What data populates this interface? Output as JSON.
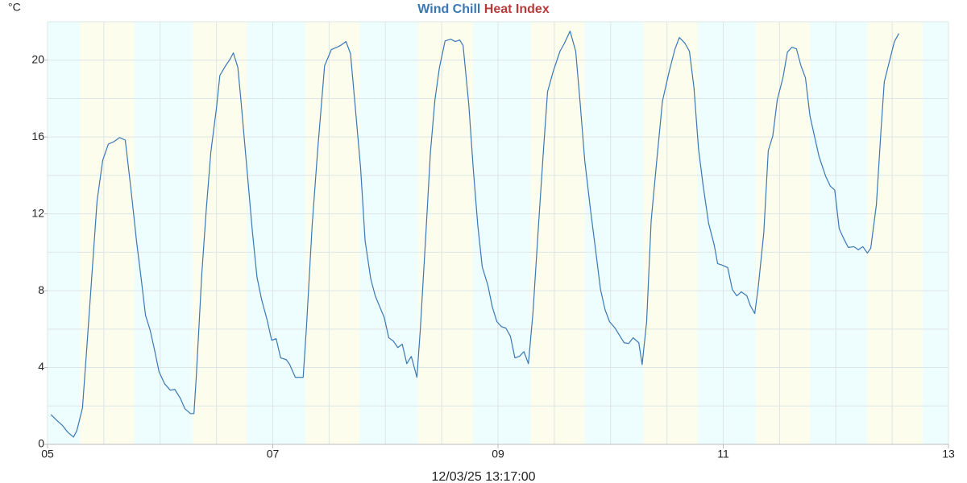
{
  "chart_data": {
    "type": "line",
    "unit": "°C",
    "xlabel": "12/03/25 13:17:00",
    "heat_index": {
      "name": "Heat Index",
      "color": "#b83b3b"
    },
    "xlim": [
      5,
      13
    ],
    "ylim": [
      0,
      22
    ],
    "xticks": [
      {
        "value": 5,
        "label": "05"
      },
      {
        "value": 7,
        "label": "07"
      },
      {
        "value": 9,
        "label": "09"
      },
      {
        "value": 11,
        "label": "11"
      },
      {
        "value": 13,
        "label": "13"
      }
    ],
    "yticks": [
      0,
      4,
      8,
      12,
      16,
      20
    ],
    "xgrid": [
      5,
      5.5,
      6,
      6.5,
      7,
      7.5,
      8,
      8.5,
      9,
      9.5,
      10,
      10.5,
      11,
      11.5,
      12,
      12.5,
      13
    ],
    "ygrid": [
      0,
      2,
      4,
      6,
      8,
      10,
      12,
      14,
      16,
      18,
      20,
      22
    ],
    "grid": true,
    "night_color": "#eefdfd",
    "day_color": "#fdfdee",
    "day_periods": [
      [
        5.29,
        5.77
      ],
      [
        6.29,
        6.77
      ],
      [
        7.29,
        7.77
      ],
      [
        8.29,
        8.78
      ],
      [
        9.29,
        9.77
      ],
      [
        10.29,
        10.77
      ],
      [
        11.29,
        11.77
      ],
      [
        12.28,
        12.77
      ]
    ],
    "x": [
      5.03,
      5.08,
      5.13,
      5.18,
      5.23,
      5.26,
      5.31,
      5.35,
      5.44,
      5.49,
      5.54,
      5.59,
      5.64,
      5.69,
      5.74,
      5.79,
      5.83,
      5.87,
      5.91,
      5.95,
      5.99,
      6.04,
      6.09,
      6.13,
      6.18,
      6.22,
      6.27,
      6.3,
      6.32,
      6.37,
      6.41,
      6.45,
      6.5,
      6.53,
      6.58,
      6.62,
      6.65,
      6.69,
      6.72,
      6.77,
      6.82,
      6.86,
      6.9,
      6.95,
      6.99,
      7.03,
      7.07,
      7.12,
      7.15,
      7.2,
      7.27,
      7.3,
      7.35,
      7.4,
      7.46,
      7.52,
      7.57,
      7.6,
      7.65,
      7.69,
      7.73,
      7.78,
      7.82,
      7.87,
      7.91,
      7.96,
      7.99,
      8.03,
      8.07,
      8.11,
      8.15,
      8.19,
      8.23,
      8.28,
      8.31,
      8.36,
      8.4,
      8.44,
      8.48,
      8.53,
      8.58,
      8.62,
      8.66,
      8.69,
      8.74,
      8.78,
      8.82,
      8.86,
      8.91,
      8.95,
      8.99,
      9.03,
      9.07,
      9.11,
      9.15,
      9.19,
      9.23,
      9.27,
      9.31,
      9.36,
      9.4,
      9.44,
      9.49,
      9.55,
      9.59,
      9.64,
      9.69,
      9.73,
      9.77,
      9.82,
      9.87,
      9.91,
      9.95,
      9.99,
      10.04,
      10.07,
      10.12,
      10.16,
      10.2,
      10.25,
      10.28,
      10.32,
      10.36,
      10.41,
      10.46,
      10.52,
      10.57,
      10.61,
      10.66,
      10.7,
      10.74,
      10.78,
      10.82,
      10.87,
      10.92,
      10.95,
      10.99,
      11.04,
      11.08,
      11.12,
      11.16,
      11.21,
      11.24,
      11.28,
      11.31,
      11.36,
      11.4,
      11.44,
      11.48,
      11.53,
      11.57,
      11.61,
      11.65,
      11.69,
      11.73,
      11.77,
      11.81,
      11.85,
      11.91,
      11.95,
      11.99,
      12.03,
      12.07,
      12.11,
      12.16,
      12.2,
      12.24,
      12.28,
      12.31,
      12.36,
      12.4,
      12.43,
      12.48,
      12.52,
      12.56
    ],
    "series": [
      {
        "name": "Wind Chill",
        "color": "#3a78b5",
        "values": [
          1.55,
          1.26,
          1.0,
          0.63,
          0.38,
          0.71,
          1.89,
          5.13,
          12.69,
          14.79,
          15.63,
          15.76,
          15.97,
          15.84,
          13.32,
          10.59,
          8.7,
          6.72,
          5.97,
          4.92,
          3.78,
          3.15,
          2.82,
          2.86,
          2.39,
          1.85,
          1.6,
          1.6,
          3.45,
          8.9,
          12.27,
          15.21,
          17.52,
          19.2,
          19.7,
          20.04,
          20.38,
          19.62,
          17.73,
          14.37,
          11.01,
          8.7,
          7.56,
          6.47,
          5.42,
          5.5,
          4.5,
          4.41,
          4.16,
          3.49,
          3.49,
          6.18,
          11.43,
          15.42,
          19.7,
          20.55,
          20.67,
          20.76,
          20.97,
          20.34,
          17.73,
          14.37,
          10.59,
          8.61,
          7.73,
          7.02,
          6.6,
          5.55,
          5.38,
          5.04,
          5.21,
          4.2,
          4.58,
          3.49,
          5.97,
          11.01,
          15.21,
          17.94,
          19.62,
          21.0,
          21.09,
          20.97,
          21.05,
          20.76,
          17.73,
          14.37,
          11.43,
          9.24,
          8.28,
          7.14,
          6.39,
          6.13,
          6.05,
          5.63,
          4.5,
          4.58,
          4.83,
          4.2,
          6.81,
          11.43,
          15.0,
          18.36,
          19.41,
          20.46,
          20.88,
          21.51,
          20.46,
          17.73,
          14.79,
          12.27,
          9.96,
          8.07,
          7.02,
          6.39,
          6.05,
          5.76,
          5.29,
          5.25,
          5.55,
          5.29,
          4.16,
          6.39,
          11.64,
          14.79,
          17.86,
          19.41,
          20.55,
          21.18,
          20.88,
          20.46,
          18.57,
          15.42,
          13.53,
          11.51,
          10.38,
          9.41,
          9.33,
          9.2,
          8.07,
          7.73,
          7.94,
          7.73,
          7.23,
          6.81,
          8.15,
          11.01,
          15.29,
          16.05,
          17.94,
          19.08,
          20.42,
          20.67,
          20.59,
          19.71,
          19.08,
          17.1,
          16.05,
          15.0,
          13.95,
          13.45,
          13.24,
          11.22,
          10.71,
          10.25,
          10.29,
          10.13,
          10.29,
          9.96,
          10.21,
          12.48,
          16.26,
          18.87,
          20.04,
          20.97,
          21.39
        ]
      }
    ]
  }
}
